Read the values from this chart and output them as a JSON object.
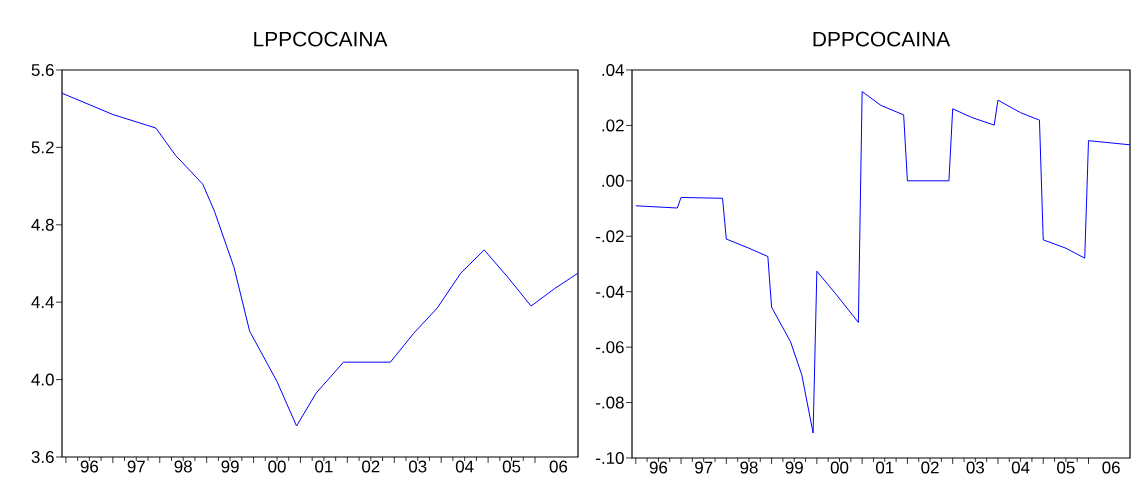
{
  "chart_data": [
    {
      "type": "line",
      "title": "LPPCOCAINA",
      "color": "#0000ff",
      "x": [
        "1995-12",
        "1997-01",
        "1997-12",
        "1998-05",
        "1998-12",
        "1999-03",
        "1999-08",
        "1999-12",
        "2000-07",
        "2000-12",
        "2001-05",
        "2001-12",
        "2002-12",
        "2003-06",
        "2003-12",
        "2004-06",
        "2004-12",
        "2005-06",
        "2005-12",
        "2006-06",
        "2006-12"
      ],
      "values": [
        5.48,
        5.37,
        5.3,
        5.16,
        5.01,
        4.87,
        4.58,
        4.25,
        3.99,
        3.76,
        3.93,
        4.09,
        4.09,
        4.24,
        4.37,
        4.55,
        4.67,
        4.53,
        4.38,
        4.47,
        4.55
      ],
      "xlim": [
        "1995-12",
        "2006-12"
      ],
      "ylim": [
        3.6,
        5.6
      ],
      "yticks": [
        3.6,
        {
          "value": 4.0,
          "label": "4.0"
        },
        4.4,
        4.8,
        5.2,
        5.6
      ],
      "xticks": [
        {
          "value": "1996",
          "label": null
        },
        {
          "value": "1997",
          "label": null
        },
        {
          "value": "1998",
          "label": null
        },
        {
          "value": "1999",
          "label": null
        },
        {
          "value": "2000",
          "label": null
        },
        {
          "value": "2001",
          "label": null
        },
        {
          "value": "2002",
          "label": null
        },
        {
          "value": "2003",
          "label": null
        },
        {
          "value": "2004",
          "label": null
        },
        {
          "value": "2005",
          "label": null
        },
        {
          "value": "2006",
          "label": null
        },
        {
          "value": "1996-07",
          "label": "96"
        },
        {
          "value": "1997-07",
          "label": "97"
        },
        {
          "value": "1998-07",
          "label": "98"
        },
        {
          "value": "1999-07",
          "label": "99"
        },
        {
          "value": "2000-07",
          "label": "00"
        },
        {
          "value": "2001-07",
          "label": "01"
        },
        {
          "value": "2002-07",
          "label": "02"
        },
        {
          "value": "2003-07",
          "label": "03"
        },
        {
          "value": "2004-07",
          "label": "04"
        },
        {
          "value": "2005-07",
          "label": "05"
        },
        {
          "value": "2006-07",
          "label": "06"
        }
      ]
    },
    {
      "type": "line",
      "title": "DPPCOCAINA",
      "color": "#0000ff",
      "x": [
        "1996-01",
        "1996-12",
        "1997-01",
        "1997-12",
        "1998-01",
        "1998-07",
        "1998-12",
        "1999-01",
        "1999-06",
        "1999-09",
        "1999-12",
        "2000-01",
        "2000-06",
        "2000-12",
        "2001-01",
        "2001-06",
        "2001-12",
        "2002-01",
        "2002-12",
        "2003-01",
        "2003-06",
        "2003-12",
        "2004-01",
        "2004-07",
        "2004-12",
        "2005-01",
        "2005-07",
        "2005-12",
        "2006-01",
        "2006-12"
      ],
      "values": [
        -0.009,
        -0.0098,
        -0.006,
        -0.0063,
        -0.021,
        -0.0243,
        -0.0273,
        -0.0456,
        -0.058,
        -0.07,
        -0.091,
        -0.0326,
        -0.0408,
        -0.0511,
        0.0322,
        0.0272,
        0.0238,
        0.0,
        0.0,
        0.026,
        0.0229,
        0.0201,
        0.0291,
        0.0246,
        0.0219,
        -0.0213,
        -0.0243,
        -0.0279,
        0.0145,
        0.013
      ],
      "xlim": [
        "1995-12",
        "2006-12"
      ],
      "ylim": [
        -0.1,
        0.04
      ],
      "yticks": [
        {
          "value": -0.1,
          "label": "-.10"
        },
        {
          "value": -0.08,
          "label": "-.08"
        },
        {
          "value": -0.06,
          "label": "-.06"
        },
        {
          "value": -0.04,
          "label": "-.04"
        },
        {
          "value": -0.02,
          "label": "-.02"
        },
        {
          "value": 0.0,
          "label": ".00"
        },
        {
          "value": 0.02,
          "label": ".02"
        },
        {
          "value": 0.04,
          "label": ".04"
        }
      ],
      "xticks": [
        {
          "value": "1996",
          "label": null
        },
        {
          "value": "1997",
          "label": null
        },
        {
          "value": "1998",
          "label": null
        },
        {
          "value": "1999",
          "label": null
        },
        {
          "value": "2000",
          "label": null
        },
        {
          "value": "2001",
          "label": null
        },
        {
          "value": "2002",
          "label": null
        },
        {
          "value": "2003",
          "label": null
        },
        {
          "value": "2004",
          "label": null
        },
        {
          "value": "2005",
          "label": null
        },
        {
          "value": "2006",
          "label": null
        },
        {
          "value": "1996-07",
          "label": "96"
        },
        {
          "value": "1997-07",
          "label": "97"
        },
        {
          "value": "1998-07",
          "label": "98"
        },
        {
          "value": "1999-07",
          "label": "99"
        },
        {
          "value": "2000-07",
          "label": "00"
        },
        {
          "value": "2001-07",
          "label": "01"
        },
        {
          "value": "2002-07",
          "label": "02"
        },
        {
          "value": "2003-07",
          "label": "03"
        },
        {
          "value": "2004-07",
          "label": "04"
        },
        {
          "value": "2005-07",
          "label": "05"
        },
        {
          "value": "2006-07",
          "label": "06"
        }
      ]
    }
  ]
}
